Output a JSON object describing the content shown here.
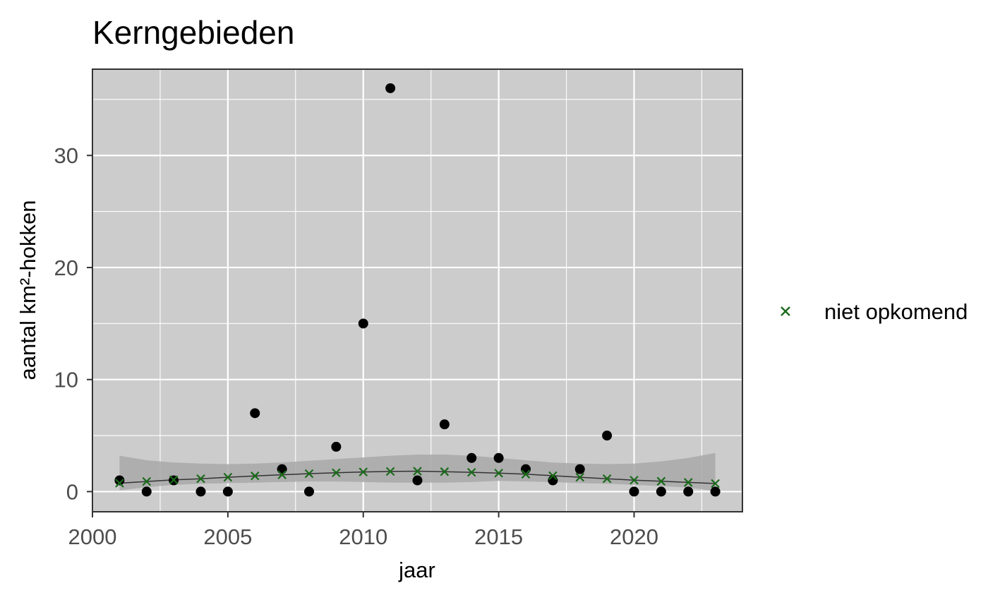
{
  "chart_data": {
    "type": "scatter",
    "title": "Kerngebieden",
    "xlabel": "jaar",
    "ylabel": "aantal km²-hokken",
    "xlim": [
      2000,
      2024
    ],
    "ylim": [
      -1.8,
      37.7
    ],
    "x_ticks": [
      2000,
      2005,
      2010,
      2015,
      2020
    ],
    "y_ticks": [
      0,
      10,
      20,
      30
    ],
    "grid": true,
    "background": "#cccccc",
    "legend_position": "right",
    "series": [
      {
        "kind": "points",
        "color": "#000000",
        "x": [
          2001,
          2002,
          2003,
          2004,
          2005,
          2006,
          2007,
          2008,
          2009,
          2010,
          2011,
          2012,
          2013,
          2014,
          2015,
          2016,
          2017,
          2018,
          2019,
          2020,
          2021,
          2022,
          2023
        ],
        "values": [
          1,
          0,
          1,
          0,
          0,
          7,
          2,
          0,
          4,
          15,
          36,
          1,
          6,
          3,
          3,
          2,
          1,
          2,
          5,
          0,
          0,
          0,
          0
        ]
      },
      {
        "kind": "fit",
        "color": "#333333",
        "band_color": "#a8a8a8",
        "x": [
          2001,
          2002,
          2003,
          2004,
          2005,
          2006,
          2007,
          2008,
          2009,
          2010,
          2011,
          2012,
          2013,
          2014,
          2015,
          2016,
          2017,
          2018,
          2019,
          2020,
          2021,
          2022,
          2023
        ],
        "values": [
          0.75,
          0.9,
          1.05,
          1.15,
          1.28,
          1.4,
          1.5,
          1.6,
          1.68,
          1.75,
          1.8,
          1.82,
          1.78,
          1.72,
          1.65,
          1.55,
          1.42,
          1.28,
          1.15,
          1.02,
          0.92,
          0.82,
          0.72
        ],
        "lower": [
          0.1,
          0.4,
          0.6,
          0.7,
          0.75,
          0.8,
          0.85,
          0.9,
          0.9,
          0.85,
          0.8,
          0.8,
          0.8,
          0.85,
          0.95,
          0.9,
          0.85,
          0.75,
          0.7,
          0.6,
          0.5,
          0.35,
          0.05
        ],
        "upper": [
          3.2,
          2.8,
          2.6,
          2.5,
          2.45,
          2.5,
          2.6,
          2.75,
          2.9,
          3.05,
          3.2,
          3.3,
          3.3,
          3.2,
          3.0,
          2.8,
          2.6,
          2.5,
          2.45,
          2.5,
          2.7,
          3.0,
          3.45
        ]
      },
      {
        "name": "niet opkomend",
        "kind": "crosses",
        "color": "#1a6b1a",
        "x": [
          2001,
          2002,
          2003,
          2004,
          2005,
          2006,
          2007,
          2008,
          2009,
          2010,
          2011,
          2012,
          2013,
          2014,
          2015,
          2016,
          2017,
          2018,
          2019,
          2020,
          2021,
          2022,
          2023
        ],
        "values": [
          0.75,
          0.9,
          1.05,
          1.15,
          1.28,
          1.4,
          1.5,
          1.6,
          1.68,
          1.75,
          1.8,
          1.82,
          1.78,
          1.72,
          1.65,
          1.55,
          1.42,
          1.28,
          1.15,
          1.02,
          0.92,
          0.82,
          0.72
        ]
      }
    ]
  }
}
